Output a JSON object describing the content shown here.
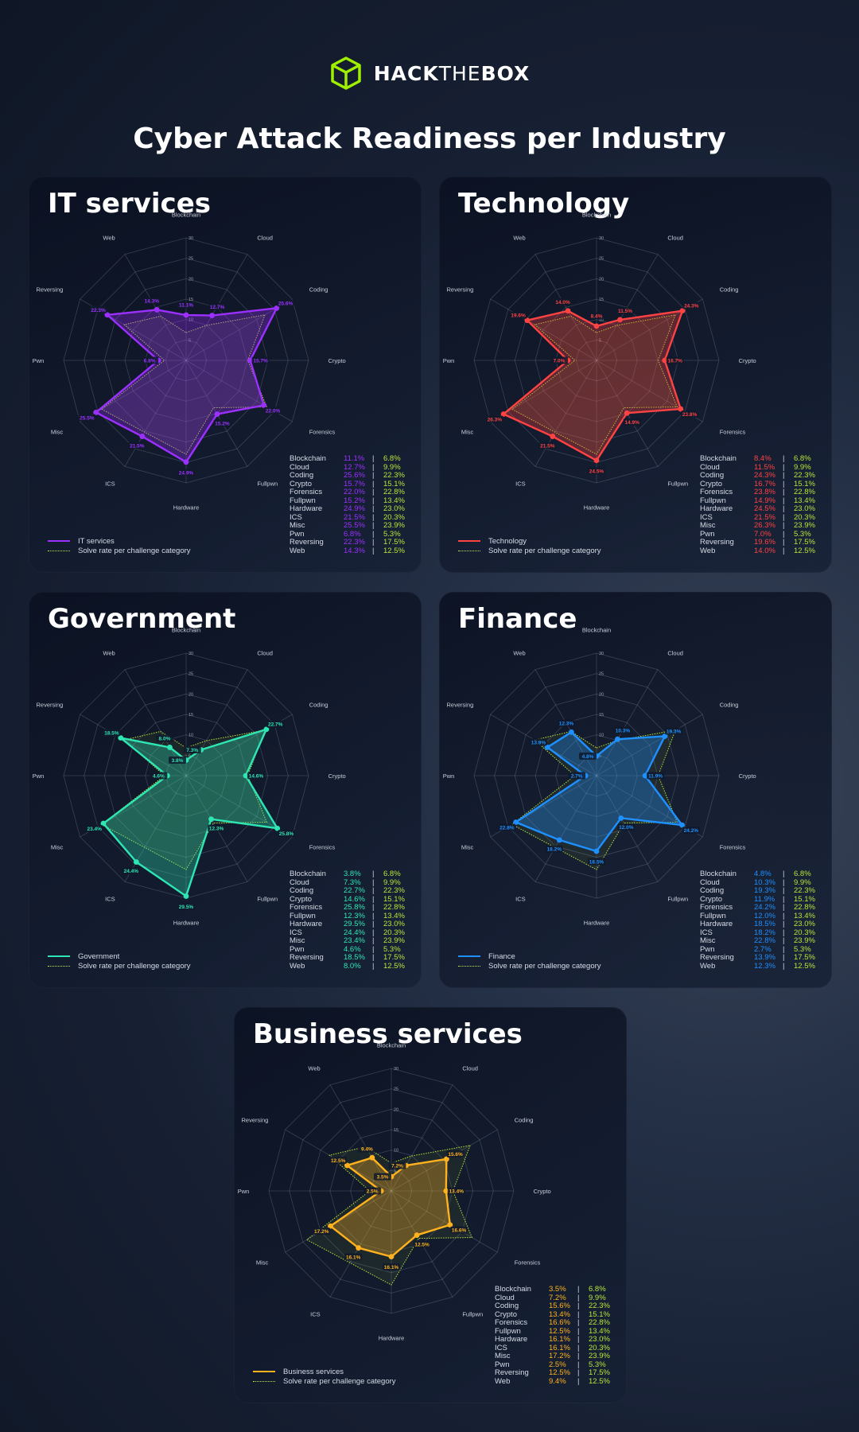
{
  "brand": {
    "name_bold1": "HACK",
    "name_light": "THE",
    "name_bold2": "BOX",
    "accent": "#9fef00"
  },
  "page_title": "Cyber Attack Readiness per Industry",
  "legend_baseline_label": "Solve rate per challenge category",
  "baseline_color": "#b9e73a",
  "chart_data": [
    {
      "type": "radar",
      "title": "IT services",
      "color": "#9b30ff",
      "categories": [
        "Blockchain",
        "Cloud",
        "Coding",
        "Crypto",
        "Forensics",
        "Fullpwn",
        "Hardware",
        "ICS",
        "Misc",
        "Pwn",
        "Reversing",
        "Web"
      ],
      "rlim": [
        0,
        30
      ],
      "rticks": [
        "5",
        "10",
        "15",
        "20",
        "25",
        "30"
      ],
      "series": [
        {
          "name": "IT services",
          "values": [
            11.1,
            12.7,
            25.6,
            15.7,
            22.0,
            15.2,
            24.9,
            21.5,
            25.5,
            6.8,
            22.3,
            14.3
          ],
          "labels": [
            "11.1%",
            "12.7%",
            "25.6%",
            "15.7%",
            "22.0%",
            "15.2%",
            "24.9%",
            "21.5%",
            "25.5%",
            "6.8%",
            "22.3%",
            "14.3%"
          ]
        },
        {
          "name": "Solve rate per challenge category",
          "values": [
            6.8,
            9.9,
            22.3,
            15.1,
            22.8,
            13.4,
            23.0,
            20.3,
            23.9,
            5.3,
            17.5,
            12.5
          ],
          "labels": [
            "6.8%",
            "9.9%",
            "22.3%",
            "15.1%",
            "22.8%",
            "13.4%",
            "23.0%",
            "20.3%",
            "23.9%",
            "5.3%",
            "17.5%",
            "12.5%"
          ]
        }
      ]
    },
    {
      "type": "radar",
      "title": "Technology",
      "color": "#ff4242",
      "categories": [
        "Blockchain",
        "Cloud",
        "Coding",
        "Crypto",
        "Forensics",
        "Fullpwn",
        "Hardware",
        "ICS",
        "Misc",
        "Pwn",
        "Reversing",
        "Web"
      ],
      "rlim": [
        0,
        30
      ],
      "rticks": [
        "5",
        "10",
        "15",
        "20",
        "25",
        "30"
      ],
      "series": [
        {
          "name": "Technology",
          "values": [
            8.4,
            11.5,
            24.3,
            16.7,
            23.8,
            14.9,
            24.5,
            21.5,
            26.3,
            7.0,
            19.6,
            14.0
          ],
          "labels": [
            "8.4%",
            "11.5%",
            "24.3%",
            "16.7%",
            "23.8%",
            "14.9%",
            "24.5%",
            "21.5%",
            "26.3%",
            "7.0%",
            "19.6%",
            "14.0%"
          ]
        },
        {
          "name": "Solve rate per challenge category",
          "values": [
            6.8,
            9.9,
            22.3,
            15.1,
            22.8,
            13.4,
            23.0,
            20.3,
            23.9,
            5.3,
            17.5,
            12.5
          ],
          "labels": [
            "6.8%",
            "9.9%",
            "22.3%",
            "15.1%",
            "22.8%",
            "13.4%",
            "23.0%",
            "20.3%",
            "23.9%",
            "5.3%",
            "17.5%",
            "12.5%"
          ]
        }
      ]
    },
    {
      "type": "radar",
      "title": "Government",
      "color": "#2ee6b4",
      "categories": [
        "Blockchain",
        "Cloud",
        "Coding",
        "Crypto",
        "Forensics",
        "Fullpwn",
        "Hardware",
        "ICS",
        "Misc",
        "Pwn",
        "Reversing",
        "Web"
      ],
      "rlim": [
        0,
        30
      ],
      "rticks": [
        "5",
        "10",
        "15",
        "20",
        "25",
        "30"
      ],
      "series": [
        {
          "name": "Government",
          "values": [
            3.8,
            7.3,
            22.7,
            14.6,
            25.8,
            12.3,
            29.5,
            24.4,
            23.4,
            4.6,
            18.5,
            8.0
          ],
          "labels": [
            "3.8%",
            "7.3%",
            "22.7%",
            "14.6%",
            "25.8%",
            "12.3%",
            "29.5%",
            "24.4%",
            "23.4%",
            "4.6%",
            "18.5%",
            "8.0%"
          ]
        },
        {
          "name": "Solve rate per challenge category",
          "values": [
            6.8,
            9.9,
            22.3,
            15.1,
            22.8,
            13.4,
            23.0,
            20.3,
            23.9,
            5.3,
            17.5,
            12.5
          ],
          "labels": [
            "6.8%",
            "9.9%",
            "22.3%",
            "15.1%",
            "22.8%",
            "13.4%",
            "23.0%",
            "20.3%",
            "23.9%",
            "5.3%",
            "17.5%",
            "12.5%"
          ]
        }
      ]
    },
    {
      "type": "radar",
      "title": "Finance",
      "color": "#1e90ff",
      "categories": [
        "Blockchain",
        "Cloud",
        "Coding",
        "Crypto",
        "Forensics",
        "Fullpwn",
        "Hardware",
        "ICS",
        "Misc",
        "Pwn",
        "Reversing",
        "Web"
      ],
      "rlim": [
        0,
        30
      ],
      "rticks": [
        "5",
        "10",
        "15",
        "20",
        "25",
        "30"
      ],
      "series": [
        {
          "name": "Finance",
          "values": [
            4.8,
            10.3,
            19.3,
            11.9,
            24.2,
            12.0,
            18.5,
            18.2,
            22.8,
            2.7,
            13.9,
            12.3
          ],
          "labels": [
            "4.8%",
            "10.3%",
            "19.3%",
            "11.9%",
            "24.2%",
            "12.0%",
            "18.5%",
            "18.2%",
            "22.8%",
            "2.7%",
            "13.9%",
            "12.3%"
          ]
        },
        {
          "name": "Solve rate per challenge category",
          "values": [
            6.8,
            9.9,
            22.3,
            15.1,
            22.8,
            13.4,
            23.0,
            20.3,
            23.9,
            5.3,
            17.5,
            12.5
          ],
          "labels": [
            "6.8%",
            "9.9%",
            "22.3%",
            "15.1%",
            "22.8%",
            "13.4%",
            "23.0%",
            "20.3%",
            "23.9%",
            "5.3%",
            "17.5%",
            "12.5%"
          ]
        }
      ]
    },
    {
      "type": "radar",
      "title": "Business services",
      "color": "#ffb21e",
      "categories": [
        "Blockchain",
        "Cloud",
        "Coding",
        "Crypto",
        "Forensics",
        "Fullpwn",
        "Hardware",
        "ICS",
        "Misc",
        "Pwn",
        "Reversing",
        "Web"
      ],
      "rlim": [
        0,
        30
      ],
      "rticks": [
        "5",
        "10",
        "15",
        "20",
        "25",
        "30"
      ],
      "series": [
        {
          "name": "Business services",
          "values": [
            3.5,
            7.2,
            15.6,
            13.4,
            16.6,
            12.5,
            16.1,
            16.1,
            17.2,
            2.5,
            12.5,
            9.4
          ],
          "labels": [
            "3.5%",
            "7.2%",
            "15.6%",
            "13.4%",
            "16.6%",
            "12.5%",
            "16.1%",
            "16.1%",
            "17.2%",
            "2.5%",
            "12.5%",
            "9.4%"
          ]
        },
        {
          "name": "Solve rate per challenge category",
          "values": [
            6.8,
            9.9,
            22.3,
            15.1,
            22.8,
            13.4,
            23.0,
            20.3,
            23.9,
            5.3,
            17.5,
            12.5
          ],
          "labels": [
            "6.8%",
            "9.9%",
            "22.3%",
            "15.1%",
            "22.8%",
            "13.4%",
            "23.0%",
            "20.3%",
            "23.9%",
            "5.3%",
            "17.5%",
            "12.5%"
          ]
        }
      ]
    }
  ]
}
